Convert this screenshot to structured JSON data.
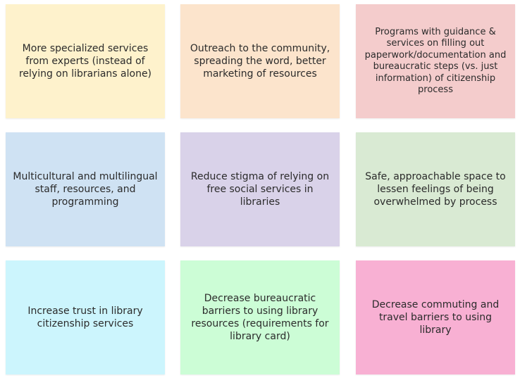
{
  "notes": [
    {
      "text": "More specialized services from experts (instead of relying on librarians alone)",
      "color": "#fef2cc"
    },
    {
      "text": "Outreach to the community, spreading the word, better marketing of resources",
      "color": "#fce4cc"
    },
    {
      "text": "Programs with guidance & services on filling out paperwork/documentation and bureaucratic steps (vs. just information) of citizenship process",
      "color": "#f4cccc"
    },
    {
      "text": "Multicultural and multilingual staff, resources, and programming",
      "color": "#cfe2f3"
    },
    {
      "text": "Reduce stigma of relying on free social services in libraries",
      "color": "#d9d2e9"
    },
    {
      "text": "Safe, approachable space to lessen feelings of being overwhelmed by process",
      "color": "#d9ead3"
    },
    {
      "text": "Increase trust in library citizenship services",
      "color": "#ccf5fd"
    },
    {
      "text": "Decrease bureaucratic barriers to using library resources (requirements for library card)",
      "color": "#ccfdd6"
    },
    {
      "text": "Decrease commuting and travel barriers to using library",
      "color": "#f8b0d3"
    }
  ]
}
